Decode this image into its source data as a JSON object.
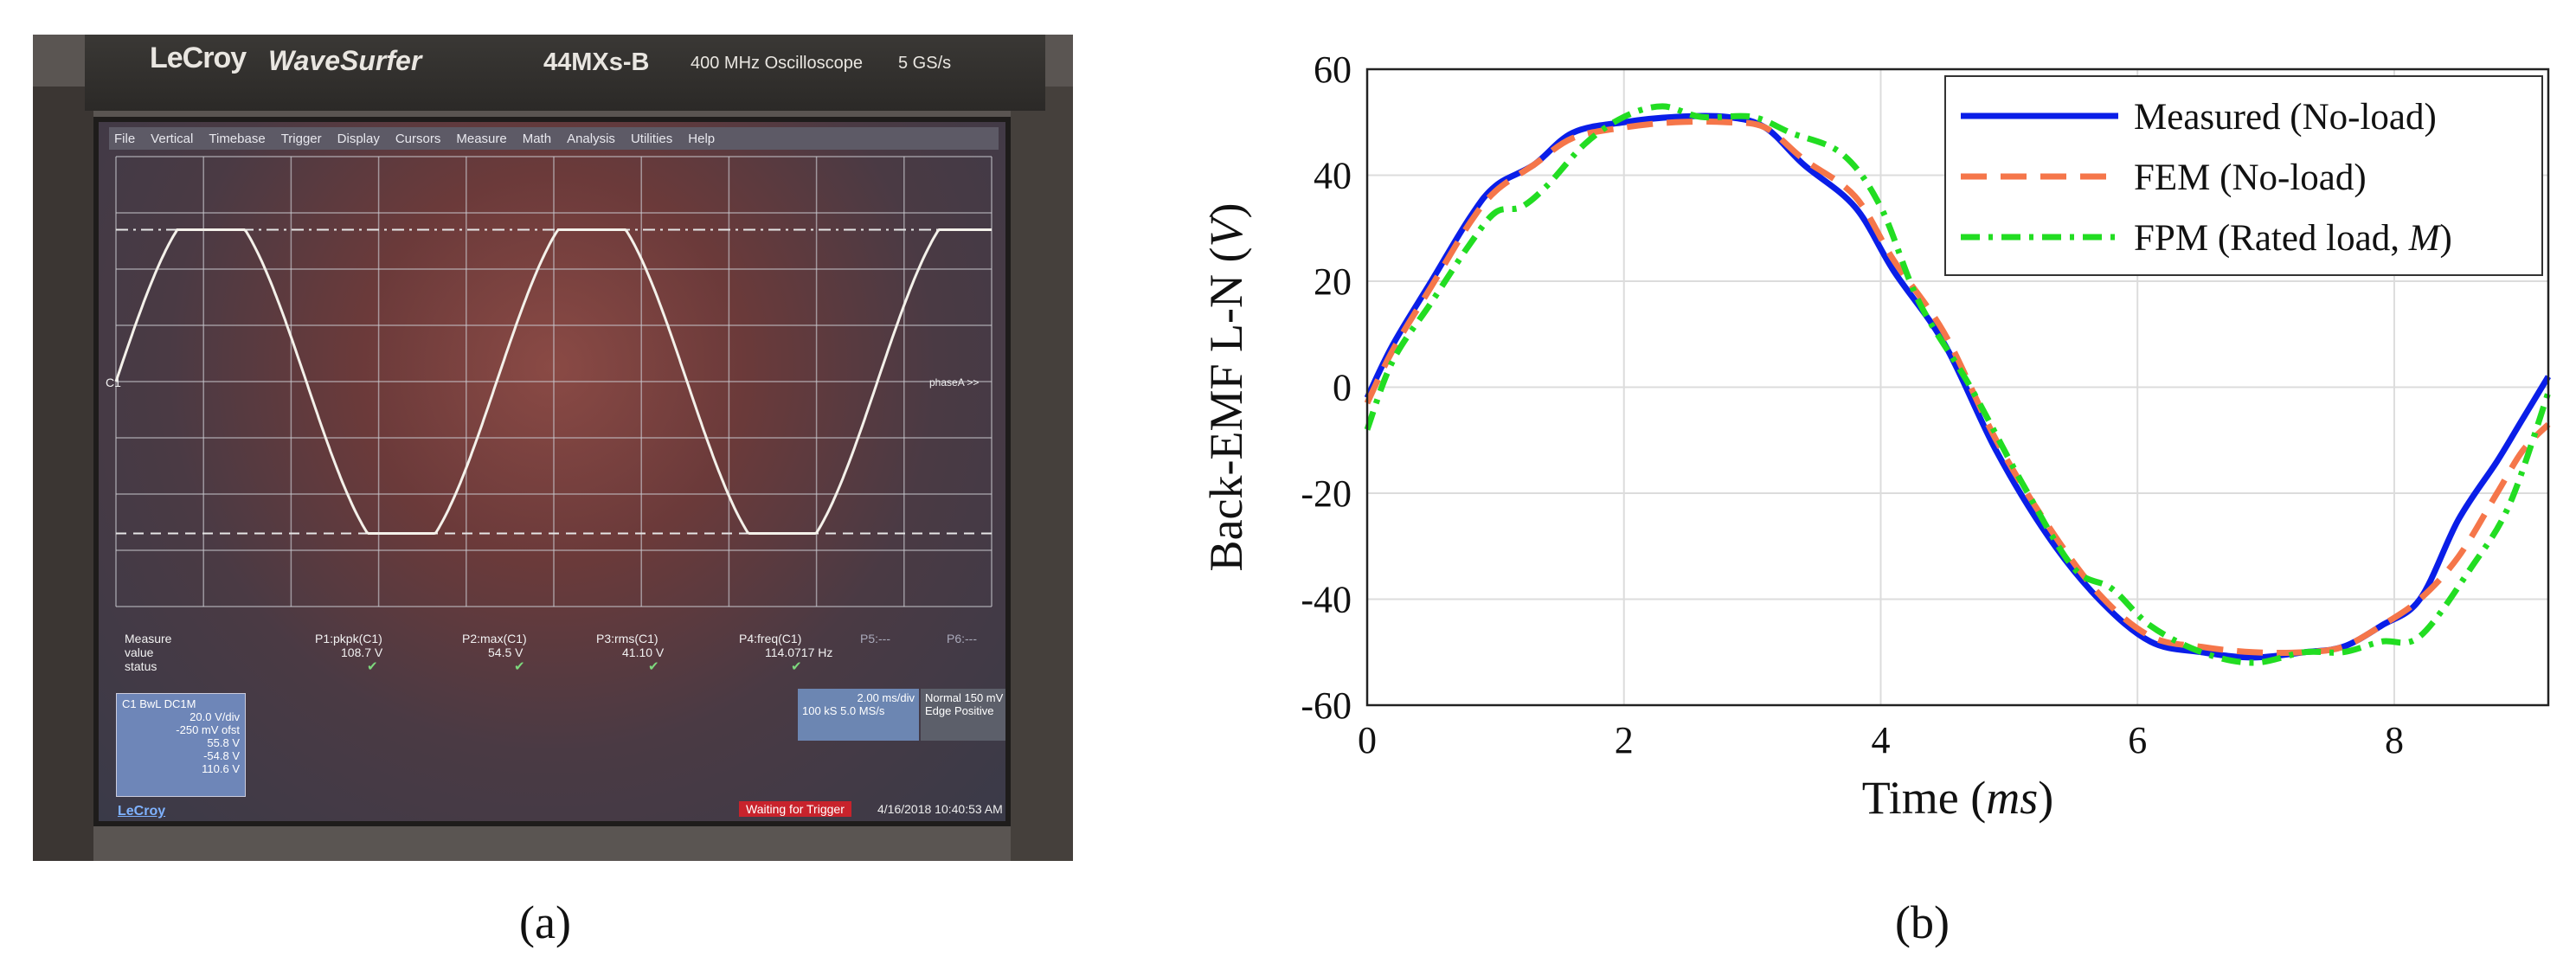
{
  "panel_a": {
    "brand": {
      "lecroy": "LeCroy",
      "product": "WaveSurfer",
      "model": "44MXs-B",
      "bandwidth": "400 MHz Oscilloscope",
      "rate": "5 GS/s"
    },
    "menu": [
      "File",
      "Vertical",
      "Timebase",
      "Trigger",
      "Display",
      "Cursors",
      "Measure",
      "Math",
      "Analysis",
      "Utilities",
      "Help"
    ],
    "trace_label": "C1",
    "cursor_label": "phaseA >>",
    "measure_labels": {
      "title": "Measure",
      "value": "value",
      "status": "status"
    },
    "measurements": [
      {
        "name": "P1:pkpk(C1)",
        "value": "108.7 V"
      },
      {
        "name": "P2:max(C1)",
        "value": "54.5 V"
      },
      {
        "name": "P3:rms(C1)",
        "value": "41.10 V"
      },
      {
        "name": "P4:freq(C1)",
        "value": "114.0717 Hz"
      }
    ],
    "extra_slots": [
      "P5:---",
      "P6:---"
    ],
    "channel_box": {
      "head": "C1  BwL DC1M",
      "lines": [
        "20.0 V/div",
        "-250 mV ofst",
        "55.8 V",
        "-54.8 V",
        "110.6 V"
      ]
    },
    "timebase_box": [
      "2.00 ms/div",
      "100 kS   5.0 MS/s"
    ],
    "trigger_box": [
      "Normal  150 mV",
      "Edge    Positive"
    ],
    "status": "Waiting for Trigger",
    "timestamp": "4/16/2018 10:40:53 AM",
    "logo_small": "LeCroy",
    "waveform": {
      "cycles_shown": 2.3,
      "amplitude_div": 2.7
    }
  },
  "chart_data": {
    "type": "line",
    "xlabel_prefix": "Time (",
    "xlabel_unit": "ms",
    "xlabel_suffix": ")",
    "ylabel_prefix": "Back-EMF L-N (",
    "ylabel_unit": "V",
    "ylabel_suffix": ")",
    "xlim": [
      0,
      9.2
    ],
    "ylim": [
      -60,
      60
    ],
    "xticks": [
      0,
      2,
      4,
      6,
      8
    ],
    "yticks": [
      -60,
      -40,
      -20,
      0,
      20,
      40,
      60
    ],
    "grid": true,
    "legend_position": "top-right",
    "series": [
      {
        "name": "Measured (No-load)",
        "color": "#0a1ee8",
        "dash": "solid",
        "x": [
          0,
          0.2,
          0.5,
          0.8,
          1.0,
          1.3,
          1.6,
          2.0,
          2.4,
          2.8,
          3.1,
          3.4,
          3.8,
          4.1,
          4.5,
          4.9,
          5.3,
          5.7,
          6.1,
          6.5,
          6.9,
          7.3,
          7.6,
          7.9,
          8.2,
          8.5,
          8.8,
          9.0,
          9.2
        ],
        "y": [
          -2,
          8,
          20,
          32,
          38,
          42,
          48,
          50,
          51,
          51,
          49,
          42,
          34,
          22,
          8,
          -12,
          -28,
          -40,
          -48,
          -50,
          -51,
          -50,
          -49,
          -45,
          -40,
          -25,
          -14,
          -6,
          2
        ]
      },
      {
        "name": "FEM (No-load)",
        "color": "#f5764a",
        "dash": "dashed",
        "x": [
          0,
          0.2,
          0.5,
          0.8,
          1.0,
          1.3,
          1.6,
          2.0,
          2.4,
          2.8,
          3.1,
          3.4,
          3.8,
          4.1,
          4.5,
          4.9,
          5.3,
          5.7,
          6.1,
          6.5,
          6.9,
          7.3,
          7.6,
          7.9,
          8.2,
          8.5,
          8.8,
          9.0,
          9.2
        ],
        "y": [
          -3,
          7,
          19,
          31,
          37,
          42,
          47,
          49,
          50,
          50,
          49,
          43,
          36,
          24,
          10,
          -10,
          -26,
          -39,
          -47,
          -49,
          -50,
          -50,
          -49,
          -45,
          -40,
          -32,
          -20,
          -12,
          -7
        ]
      },
      {
        "name": "FPM (Rated load, M)",
        "name_prefix": "FPM (Rated load, ",
        "name_unit": "M",
        "name_suffix": ")",
        "color": "#22dd22",
        "dash": "dashdot",
        "x": [
          0,
          0.2,
          0.5,
          0.8,
          1.0,
          1.2,
          1.4,
          1.7,
          2.0,
          2.3,
          2.6,
          3.0,
          3.3,
          3.7,
          4.0,
          4.3,
          4.7,
          5.1,
          5.5,
          5.8,
          6.1,
          6.5,
          6.9,
          7.3,
          7.6,
          7.9,
          8.2,
          8.6,
          8.9,
          9.2
        ],
        "y": [
          -8,
          5,
          16,
          27,
          33,
          34,
          38,
          46,
          51,
          53,
          51,
          51,
          48,
          44,
          34,
          16,
          0,
          -18,
          -34,
          -38,
          -45,
          -50,
          -52,
          -50,
          -50,
          -48,
          -47,
          -34,
          -22,
          -1
        ]
      }
    ]
  },
  "captions": {
    "a": "(a)",
    "b": "(b)"
  }
}
